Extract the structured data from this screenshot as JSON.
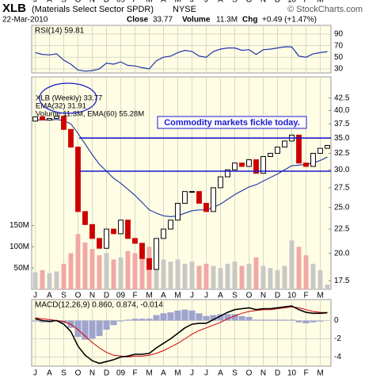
{
  "header": {
    "symbol": "XLB",
    "name": "(Materials Select Sector SPDR)",
    "exchange": "NYSE",
    "source": "© StockCharts.com",
    "date": "22-Mar-2010",
    "close_label": "Close",
    "close": "33.77",
    "volume_label": "Volume",
    "volume": "11.3M",
    "chg_label": "Chg",
    "chg": "+0.49 (+1.47%)"
  },
  "chart_data": [
    {
      "type": "line",
      "legend": "RSI(14) 59.81",
      "color": "#2233aa",
      "values": [
        58,
        55,
        54,
        56,
        45,
        38,
        28,
        26,
        27,
        30,
        40,
        38,
        42,
        36,
        35,
        32,
        30,
        44,
        50,
        52,
        58,
        62,
        60,
        52,
        50,
        60,
        64,
        66,
        66,
        62,
        63,
        55,
        63,
        64,
        66,
        68,
        68,
        52,
        50,
        56,
        58,
        59.81
      ],
      "ylim": [
        23,
        105
      ],
      "yticks": [
        90,
        70,
        50,
        30
      ],
      "grid": true
    },
    {
      "type": "candlestick",
      "log": true,
      "categories": [
        "J",
        null,
        "A",
        null,
        "S",
        null,
        "O",
        null,
        "N",
        null,
        "D",
        null,
        "09",
        null,
        "F",
        null,
        "M",
        null,
        "A",
        null,
        "M",
        null,
        "J",
        null,
        "J",
        null,
        "A",
        null,
        "S",
        null,
        "O",
        null,
        "N",
        null,
        "D",
        null,
        "10",
        null,
        "F",
        null,
        "M",
        null
      ],
      "legend": [
        "XLB (Weekly) 33.77",
        "EMA(32) 31.91",
        "Volume 11.3M, EMA(60) 55.28M"
      ],
      "up_color": "#000000",
      "down_color": "#cc0000",
      "ema_color": "#2b3fa8",
      "open": [
        38.0,
        38.8,
        38.2,
        38.5,
        38.9,
        36.5,
        33.5,
        24.5,
        23.0,
        21.5,
        20.5,
        22.5,
        22.0,
        23.5,
        21.5,
        21.0,
        19.5,
        18.5,
        21.5,
        22.5,
        23.5,
        25.5,
        27.0,
        27.0,
        25.5,
        24.5,
        27.5,
        29.0,
        30.0,
        31.0,
        30.5,
        31.5,
        29.5,
        32.0,
        32.5,
        33.5,
        34.5,
        35.5,
        31.0,
        30.5,
        32.5,
        33.3
      ],
      "close": [
        38.8,
        38.2,
        38.5,
        38.9,
        36.5,
        33.5,
        24.5,
        23.0,
        21.5,
        20.5,
        22.5,
        22.0,
        23.5,
        21.5,
        21.0,
        19.5,
        18.5,
        21.5,
        22.5,
        23.5,
        25.5,
        27.0,
        27.0,
        25.5,
        24.5,
        27.5,
        29.0,
        30.0,
        31.0,
        30.5,
        31.5,
        29.5,
        32.0,
        32.5,
        33.5,
        34.5,
        35.5,
        31.0,
        30.5,
        32.5,
        33.3,
        33.77
      ],
      "ema": [
        38.2,
        38.2,
        38.2,
        38.3,
        38.1,
        37.5,
        35.8,
        34.0,
        32.3,
        30.8,
        29.8,
        28.8,
        28.1,
        27.3,
        26.5,
        25.6,
        24.7,
        24.3,
        24.0,
        23.9,
        24.0,
        24.3,
        24.6,
        24.7,
        24.7,
        25.0,
        25.4,
        26.0,
        26.6,
        27.1,
        27.6,
        27.9,
        28.4,
        28.9,
        29.4,
        30.0,
        30.6,
        30.7,
        30.8,
        31.0,
        31.4,
        31.91
      ],
      "ylim": [
        16.8,
        47.1
      ],
      "yticks": [
        42.5,
        {
          "value": 40,
          "label": "40.0"
        },
        37.5,
        {
          "value": 35,
          "label": "35.0"
        },
        32.5,
        {
          "value": 30,
          "label": "30.0"
        },
        27.5,
        {
          "value": 25,
          "label": "25.0"
        },
        22.5,
        {
          "value": 20,
          "label": "20.0"
        },
        17.5
      ],
      "volume": {
        "values": [
          40,
          45,
          38,
          42,
          60,
          85,
          130,
          110,
          95,
          80,
          85,
          70,
          75,
          90,
          85,
          95,
          100,
          75,
          70,
          65,
          70,
          60,
          65,
          55,
          60,
          55,
          50,
          60,
          65,
          55,
          60,
          75,
          55,
          50,
          45,
          55,
          115,
          100,
          80,
          60,
          45,
          11.3
        ],
        "ylim": [
          0,
          500
        ],
        "yticks": [
          {
            "value": 50,
            "label": "50M"
          },
          {
            "value": 100,
            "label": "100M"
          },
          {
            "value": 150,
            "label": "150M"
          }
        ],
        "up_color": "#c8c8c8",
        "down_color": "#f0a8a8"
      },
      "hlines": [
        35.0,
        29.8
      ],
      "hline_color": "#1a1acc",
      "annotation": "Commodity markets fickle today."
    },
    {
      "type": "macd",
      "legend": "MACD(12,26,9) 0.860, 0.874, -0.014",
      "macd": [
        0.2,
        0.0,
        -0.1,
        0.0,
        -0.4,
        -1.2,
        -2.8,
        -3.8,
        -4.4,
        -4.7,
        -4.5,
        -4.3,
        -4.0,
        -3.9,
        -3.7,
        -3.7,
        -3.6,
        -3.0,
        -2.5,
        -2.0,
        -1.4,
        -0.8,
        -0.4,
        -0.3,
        -0.3,
        0.1,
        0.5,
        0.9,
        1.2,
        1.3,
        1.4,
        1.2,
        1.3,
        1.3,
        1.4,
        1.5,
        1.6,
        1.2,
        0.9,
        0.8,
        0.8,
        0.86
      ],
      "signal": [
        0.3,
        0.2,
        0.1,
        0.0,
        -0.1,
        -0.4,
        -1.0,
        -1.7,
        -2.4,
        -3.0,
        -3.5,
        -3.8,
        -3.9,
        -4.0,
        -3.9,
        -3.9,
        -3.8,
        -3.6,
        -3.3,
        -2.9,
        -2.5,
        -2.0,
        -1.5,
        -1.1,
        -0.8,
        -0.5,
        -0.2,
        0.2,
        0.5,
        0.8,
        1.0,
        1.1,
        1.2,
        1.2,
        1.3,
        1.4,
        1.5,
        1.4,
        1.2,
        1.0,
        0.9,
        0.874
      ],
      "histogram": [
        -0.1,
        -0.2,
        -0.2,
        0.0,
        -0.3,
        -0.8,
        -1.8,
        -2.1,
        -2.0,
        -1.7,
        -1.0,
        -0.5,
        -0.1,
        0.1,
        0.2,
        0.2,
        0.2,
        0.6,
        0.8,
        0.9,
        1.1,
        1.2,
        1.1,
        0.8,
        0.5,
        0.6,
        0.7,
        0.7,
        0.7,
        0.5,
        0.4,
        0.1,
        0.1,
        0.1,
        0.1,
        0.1,
        0.1,
        -0.2,
        -0.3,
        -0.2,
        -0.1,
        -0.014
      ],
      "macd_color": "#000000",
      "signal_color": "#cc0000",
      "histogram_color": "#9fa3cf",
      "ylim": [
        -5.0,
        2.3
      ],
      "yticks": [
        0,
        -2,
        -4
      ]
    }
  ]
}
